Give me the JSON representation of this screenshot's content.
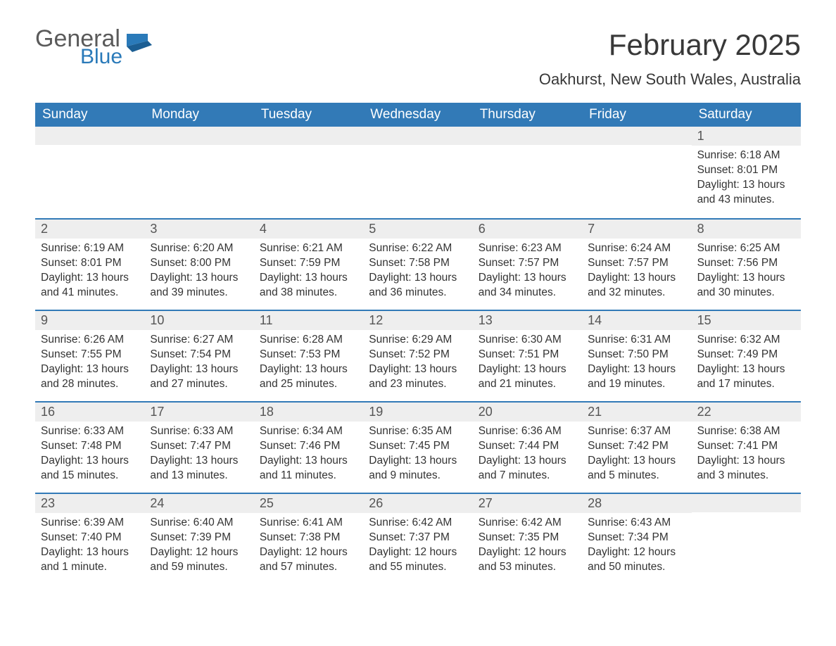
{
  "brand": {
    "word1": "General",
    "word2": "Blue",
    "accent_color": "#2a7ab9"
  },
  "title": "February 2025",
  "location": "Oakhurst, New South Wales, Australia",
  "colors": {
    "header_bg": "#327ab7",
    "header_text": "#ffffff",
    "strip_bg": "#eeeeee",
    "border": "#327ab7",
    "body_text": "#333333"
  },
  "dow": [
    "Sunday",
    "Monday",
    "Tuesday",
    "Wednesday",
    "Thursday",
    "Friday",
    "Saturday"
  ],
  "weeks": [
    [
      null,
      null,
      null,
      null,
      null,
      null,
      {
        "n": "1",
        "sr": "Sunrise: 6:18 AM",
        "ss": "Sunset: 8:01 PM",
        "dl": "Daylight: 13 hours and 43 minutes."
      }
    ],
    [
      {
        "n": "2",
        "sr": "Sunrise: 6:19 AM",
        "ss": "Sunset: 8:01 PM",
        "dl": "Daylight: 13 hours and 41 minutes."
      },
      {
        "n": "3",
        "sr": "Sunrise: 6:20 AM",
        "ss": "Sunset: 8:00 PM",
        "dl": "Daylight: 13 hours and 39 minutes."
      },
      {
        "n": "4",
        "sr": "Sunrise: 6:21 AM",
        "ss": "Sunset: 7:59 PM",
        "dl": "Daylight: 13 hours and 38 minutes."
      },
      {
        "n": "5",
        "sr": "Sunrise: 6:22 AM",
        "ss": "Sunset: 7:58 PM",
        "dl": "Daylight: 13 hours and 36 minutes."
      },
      {
        "n": "6",
        "sr": "Sunrise: 6:23 AM",
        "ss": "Sunset: 7:57 PM",
        "dl": "Daylight: 13 hours and 34 minutes."
      },
      {
        "n": "7",
        "sr": "Sunrise: 6:24 AM",
        "ss": "Sunset: 7:57 PM",
        "dl": "Daylight: 13 hours and 32 minutes."
      },
      {
        "n": "8",
        "sr": "Sunrise: 6:25 AM",
        "ss": "Sunset: 7:56 PM",
        "dl": "Daylight: 13 hours and 30 minutes."
      }
    ],
    [
      {
        "n": "9",
        "sr": "Sunrise: 6:26 AM",
        "ss": "Sunset: 7:55 PM",
        "dl": "Daylight: 13 hours and 28 minutes."
      },
      {
        "n": "10",
        "sr": "Sunrise: 6:27 AM",
        "ss": "Sunset: 7:54 PM",
        "dl": "Daylight: 13 hours and 27 minutes."
      },
      {
        "n": "11",
        "sr": "Sunrise: 6:28 AM",
        "ss": "Sunset: 7:53 PM",
        "dl": "Daylight: 13 hours and 25 minutes."
      },
      {
        "n": "12",
        "sr": "Sunrise: 6:29 AM",
        "ss": "Sunset: 7:52 PM",
        "dl": "Daylight: 13 hours and 23 minutes."
      },
      {
        "n": "13",
        "sr": "Sunrise: 6:30 AM",
        "ss": "Sunset: 7:51 PM",
        "dl": "Daylight: 13 hours and 21 minutes."
      },
      {
        "n": "14",
        "sr": "Sunrise: 6:31 AM",
        "ss": "Sunset: 7:50 PM",
        "dl": "Daylight: 13 hours and 19 minutes."
      },
      {
        "n": "15",
        "sr": "Sunrise: 6:32 AM",
        "ss": "Sunset: 7:49 PM",
        "dl": "Daylight: 13 hours and 17 minutes."
      }
    ],
    [
      {
        "n": "16",
        "sr": "Sunrise: 6:33 AM",
        "ss": "Sunset: 7:48 PM",
        "dl": "Daylight: 13 hours and 15 minutes."
      },
      {
        "n": "17",
        "sr": "Sunrise: 6:33 AM",
        "ss": "Sunset: 7:47 PM",
        "dl": "Daylight: 13 hours and 13 minutes."
      },
      {
        "n": "18",
        "sr": "Sunrise: 6:34 AM",
        "ss": "Sunset: 7:46 PM",
        "dl": "Daylight: 13 hours and 11 minutes."
      },
      {
        "n": "19",
        "sr": "Sunrise: 6:35 AM",
        "ss": "Sunset: 7:45 PM",
        "dl": "Daylight: 13 hours and 9 minutes."
      },
      {
        "n": "20",
        "sr": "Sunrise: 6:36 AM",
        "ss": "Sunset: 7:44 PM",
        "dl": "Daylight: 13 hours and 7 minutes."
      },
      {
        "n": "21",
        "sr": "Sunrise: 6:37 AM",
        "ss": "Sunset: 7:42 PM",
        "dl": "Daylight: 13 hours and 5 minutes."
      },
      {
        "n": "22",
        "sr": "Sunrise: 6:38 AM",
        "ss": "Sunset: 7:41 PM",
        "dl": "Daylight: 13 hours and 3 minutes."
      }
    ],
    [
      {
        "n": "23",
        "sr": "Sunrise: 6:39 AM",
        "ss": "Sunset: 7:40 PM",
        "dl": "Daylight: 13 hours and 1 minute."
      },
      {
        "n": "24",
        "sr": "Sunrise: 6:40 AM",
        "ss": "Sunset: 7:39 PM",
        "dl": "Daylight: 12 hours and 59 minutes."
      },
      {
        "n": "25",
        "sr": "Sunrise: 6:41 AM",
        "ss": "Sunset: 7:38 PM",
        "dl": "Daylight: 12 hours and 57 minutes."
      },
      {
        "n": "26",
        "sr": "Sunrise: 6:42 AM",
        "ss": "Sunset: 7:37 PM",
        "dl": "Daylight: 12 hours and 55 minutes."
      },
      {
        "n": "27",
        "sr": "Sunrise: 6:42 AM",
        "ss": "Sunset: 7:35 PM",
        "dl": "Daylight: 12 hours and 53 minutes."
      },
      {
        "n": "28",
        "sr": "Sunrise: 6:43 AM",
        "ss": "Sunset: 7:34 PM",
        "dl": "Daylight: 12 hours and 50 minutes."
      },
      null
    ]
  ]
}
